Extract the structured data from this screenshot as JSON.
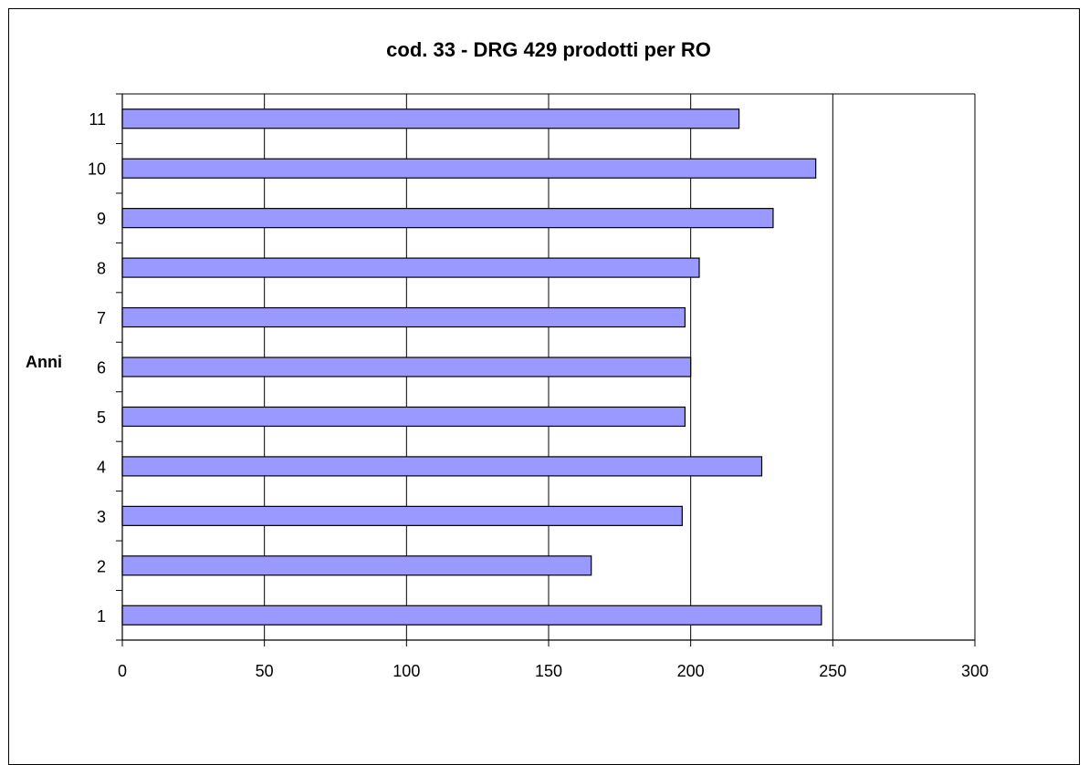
{
  "chart_data": {
    "type": "bar",
    "orientation": "horizontal",
    "title": "cod. 33 - DRG 429 prodotti per  RO",
    "xlabel": "",
    "ylabel": "Anni",
    "categories": [
      "1",
      "2",
      "3",
      "4",
      "5",
      "6",
      "7",
      "8",
      "9",
      "10",
      "11"
    ],
    "values": [
      246,
      165,
      197,
      225,
      198,
      200,
      198,
      203,
      229,
      244,
      217
    ],
    "xlim": [
      0,
      300
    ],
    "xticks": [
      "0",
      "50",
      "100",
      "150",
      "200",
      "250",
      "300"
    ],
    "grid": "vertical",
    "legend": "none",
    "colors": {
      "bar_fill": "#9999ff",
      "bar_stroke": "#000000",
      "grid": "#000000"
    }
  }
}
